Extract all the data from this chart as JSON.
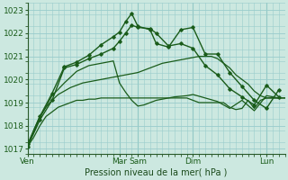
{
  "background_color": "#cce8e0",
  "grid_color": "#99cccc",
  "line_color": "#1a5c1a",
  "title": "Pression niveau de la mer( hPa )",
  "ylim": [
    1016.8,
    1023.3
  ],
  "yticks": [
    1017,
    1018,
    1019,
    1020,
    1021,
    1022,
    1023
  ],
  "day_labels": [
    "Ven",
    "Mar",
    "Sam",
    "Dim",
    "Lun"
  ],
  "day_positions": [
    0,
    120,
    144,
    216,
    312
  ],
  "xlim": [
    0,
    336
  ],
  "series": [
    {
      "x": [
        0,
        8,
        16,
        24,
        32,
        40,
        48,
        56,
        64,
        72,
        80,
        88,
        96,
        104,
        112,
        120,
        128,
        136,
        144,
        152,
        160,
        168,
        176,
        184,
        192,
        200,
        208,
        216,
        224,
        232,
        240,
        248,
        256,
        264,
        272,
        280,
        288,
        296,
        304,
        312,
        320,
        328,
        336
      ],
      "y": [
        1017.1,
        1017.5,
        1018.0,
        1018.4,
        1018.6,
        1018.8,
        1018.9,
        1019.0,
        1019.1,
        1019.1,
        1019.15,
        1019.15,
        1019.2,
        1019.2,
        1019.2,
        1019.2,
        1019.2,
        1019.2,
        1019.2,
        1019.2,
        1019.2,
        1019.2,
        1019.2,
        1019.2,
        1019.2,
        1019.2,
        1019.2,
        1019.1,
        1019.0,
        1019.0,
        1019.0,
        1019.0,
        1019.0,
        1018.8,
        1018.7,
        1018.75,
        1019.1,
        1018.75,
        1019.1,
        1019.2,
        1019.2,
        1019.2,
        1019.2
      ],
      "marker": false,
      "linewidth": 0.9
    },
    {
      "x": [
        0,
        8,
        16,
        24,
        32,
        40,
        48,
        56,
        64,
        72,
        80,
        88,
        96,
        104,
        112,
        120,
        128,
        136,
        144,
        152,
        160,
        168,
        176,
        184,
        192,
        200,
        208,
        216,
        224,
        232,
        240,
        248,
        256,
        264,
        272,
        280,
        288,
        296,
        304,
        312,
        320,
        328,
        336
      ],
      "y": [
        1017.1,
        1017.8,
        1018.4,
        1018.8,
        1019.1,
        1019.35,
        1019.5,
        1019.65,
        1019.75,
        1019.85,
        1019.9,
        1019.95,
        1020.0,
        1020.05,
        1020.1,
        1020.15,
        1020.2,
        1020.25,
        1020.3,
        1020.4,
        1020.5,
        1020.6,
        1020.7,
        1020.75,
        1020.8,
        1020.85,
        1020.9,
        1020.95,
        1021.0,
        1021.0,
        1021.0,
        1020.9,
        1020.7,
        1020.5,
        1020.2,
        1020.0,
        1019.8,
        1019.5,
        1019.3,
        1019.2,
        1019.2,
        1019.2,
        1019.2
      ],
      "marker": false,
      "linewidth": 0.9
    },
    {
      "x": [
        0,
        16,
        32,
        48,
        64,
        80,
        96,
        112,
        120,
        128,
        136,
        144,
        152,
        160,
        168,
        176,
        184,
        192,
        208,
        216,
        232,
        248,
        264,
        280,
        296,
        312,
        328
      ],
      "y": [
        1017.1,
        1018.35,
        1019.3,
        1019.85,
        1020.35,
        1020.6,
        1020.7,
        1020.8,
        1019.85,
        1019.45,
        1019.1,
        1018.85,
        1018.9,
        1019.0,
        1019.1,
        1019.15,
        1019.2,
        1019.25,
        1019.3,
        1019.35,
        1019.2,
        1019.05,
        1018.75,
        1019.1,
        1018.65,
        1019.3,
        1019.2
      ],
      "marker": false,
      "linewidth": 0.9
    },
    {
      "x": [
        0,
        16,
        32,
        48,
        64,
        80,
        96,
        112,
        120,
        128,
        136,
        144,
        160,
        168,
        184,
        200,
        216,
        232,
        248,
        264,
        280,
        296,
        312,
        328
      ],
      "y": [
        1017.2,
        1018.4,
        1019.4,
        1020.55,
        1020.75,
        1021.05,
        1021.5,
        1021.85,
        1022.05,
        1022.5,
        1022.85,
        1022.3,
        1022.15,
        1021.55,
        1021.4,
        1022.15,
        1022.25,
        1021.1,
        1021.1,
        1020.3,
        1019.7,
        1019.1,
        1018.75,
        1019.55
      ],
      "marker": true,
      "linewidth": 1.0
    },
    {
      "x": [
        0,
        16,
        32,
        48,
        64,
        80,
        96,
        112,
        120,
        128,
        136,
        144,
        160,
        168,
        184,
        200,
        216,
        232,
        248,
        264,
        280,
        296,
        312,
        328
      ],
      "y": [
        1017.1,
        1018.25,
        1019.1,
        1020.5,
        1020.65,
        1020.9,
        1021.1,
        1021.35,
        1021.65,
        1022.0,
        1022.35,
        1022.25,
        1022.2,
        1022.0,
        1021.45,
        1021.55,
        1021.35,
        1020.6,
        1020.2,
        1019.6,
        1019.25,
        1018.9,
        1019.75,
        1019.25
      ],
      "marker": true,
      "linewidth": 1.0
    }
  ]
}
